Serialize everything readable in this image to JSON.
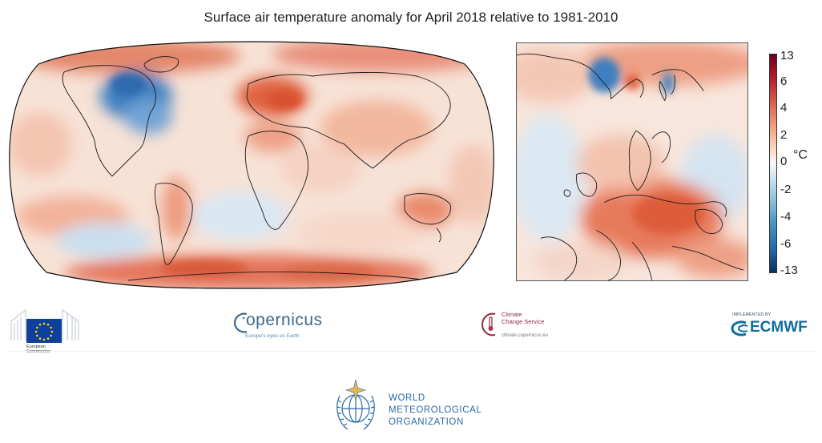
{
  "page": {
    "title": "Surface air temperature anomaly for April 2018 relative to 1981-2010"
  },
  "legend": {
    "unit": "°C",
    "ticks": [
      "13",
      "6",
      "4",
      "2",
      "0",
      "-2",
      "-4",
      "-6",
      "-13"
    ],
    "colors": [
      "#053061",
      "#2166ac",
      "#4393c3",
      "#92c5de",
      "#d1e5f0",
      "#f7f7f7",
      "#fddbc7",
      "#f4a582",
      "#d6604d",
      "#b2182b",
      "#67001f"
    ]
  },
  "maps": {
    "world": {
      "projection": "robinson",
      "icon": "world-map"
    },
    "inset": {
      "region": "Europe",
      "icon": "europe-map"
    }
  },
  "logos": {
    "eu": {
      "name_line1": "European",
      "name_line2": "Commission",
      "icon": "eu-flag-icon"
    },
    "copernicus": {
      "name": "opernicus",
      "tagline": "Europe's eyes on Earth",
      "icon": "copernicus-c-icon"
    },
    "c3s": {
      "line1": "Climate",
      "line2": "Change Service",
      "url": "climate.copernicus.eu",
      "icon": "thermometer-icon"
    },
    "ecmwf": {
      "implemented_by": "IMPLEMENTED BY",
      "name": "ECMWF",
      "icon": "ecmwf-icon"
    },
    "wmo": {
      "line1": "WORLD",
      "line2": "METEOROLOGICAL",
      "line3": "ORGANIZATION",
      "icon": "wmo-emblem-icon"
    }
  }
}
